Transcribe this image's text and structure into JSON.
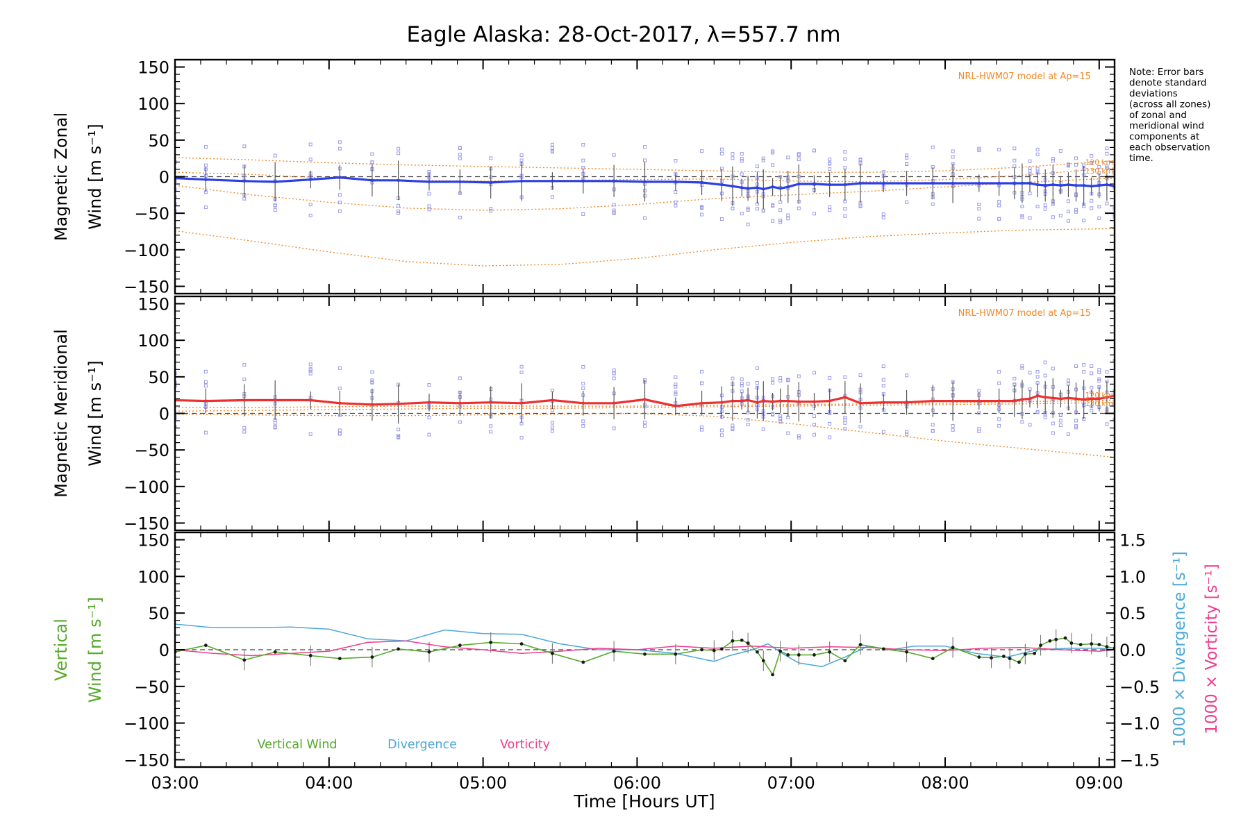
{
  "chart_data": {
    "title": "Eagle Alaska: 28-Oct-2017, λ=557.7 nm",
    "xlabel": "Time [Hours UT]",
    "x_ticks": [
      "03:00",
      "04:00",
      "05:00",
      "06:00",
      "07:00",
      "08:00",
      "09:00"
    ],
    "xlim": [
      3.0,
      9.1
    ],
    "note": [
      "Note: Error bars",
      "denote standard",
      "deviations",
      "(across all zones)",
      "of zonal and",
      "meridional wind",
      "components at",
      "each observation",
      "time."
    ],
    "colors": {
      "zonal": "#2c3fe6",
      "meridional": "#ee2f2f",
      "vertical": "#55aa2a",
      "divergence": "#4aa8d8",
      "vorticity": "#ee3c8c",
      "model": "#f08a2a",
      "zone_marker": "#9a9ae8"
    },
    "panels": [
      {
        "type": "line",
        "ylabel_line1": "Magnetic Zonal",
        "ylabel_line2": "Wind [m s⁻¹]",
        "ylim": [
          -160,
          160
        ],
        "yticks": [
          150,
          100,
          50,
          0,
          -50,
          -100,
          -150
        ],
        "model_label": "NRL-HWM07 model at Ap=15",
        "model_level_labels": [
          "120 km",
          "130 km"
        ],
        "series": [
          {
            "x": [
              3.0,
              3.2,
              3.45,
              3.65,
              3.88,
              4.07,
              4.28,
              4.45,
              4.65,
              4.85,
              5.05,
              5.25,
              5.45,
              5.65,
              5.85,
              6.05,
              6.25,
              6.42,
              6.55,
              6.62,
              6.68,
              6.72,
              6.78,
              6.82,
              6.88,
              6.93,
              6.98,
              7.05,
              7.15,
              7.25,
              7.35,
              7.45,
              7.6,
              7.75,
              7.92,
              8.05,
              8.22,
              8.35,
              8.45,
              8.5,
              8.55,
              8.6,
              8.65,
              8.7,
              8.75,
              8.8,
              8.85,
              8.9,
              8.95,
              9.0,
              9.05,
              9.1
            ],
            "values": [
              -2,
              -4,
              -6,
              -7,
              -4,
              -1,
              -5,
              -5,
              -7,
              -7,
              -8,
              -6,
              -6,
              -6,
              -6,
              -7,
              -7,
              -8,
              -11,
              -13,
              -15,
              -16,
              -15,
              -17,
              -14,
              -16,
              -14,
              -10,
              -10,
              -11,
              -11,
              -9,
              -9,
              -9,
              -9,
              -9,
              -9,
              -9,
              -9,
              -9,
              -9,
              -11,
              -12,
              -11,
              -12,
              -11,
              -12,
              -12,
              -13,
              -12,
              -11,
              -13
            ]
          }
        ],
        "model_curves": [
          {
            "x": [
              3.0,
              3.5,
              4.0,
              4.5,
              5.0,
              5.5,
              6.0,
              6.5,
              7.0,
              7.5,
              8.0,
              8.5,
              9.1
            ],
            "values": [
              26,
              23,
              19,
              16,
              14,
              12,
              10,
              8,
              6,
              6,
              8,
              13,
              22
            ]
          },
          {
            "x": [
              3.0,
              3.5,
              4.0,
              4.5,
              5.0,
              5.5,
              6.0,
              6.5,
              7.0,
              7.5,
              8.0,
              8.5,
              9.1
            ],
            "values": [
              6,
              3,
              -2,
              -5,
              -6,
              -5,
              -4,
              -3,
              -6,
              -7,
              -4,
              2,
              12
            ]
          },
          {
            "x": [
              3.0,
              3.5,
              4.0,
              4.5,
              5.0,
              5.5,
              6.0,
              6.5,
              7.0,
              7.5,
              8.0,
              8.5,
              9.1
            ],
            "values": [
              -12,
              -25,
              -35,
              -43,
              -46,
              -44,
              -38,
              -30,
              -25,
              -20,
              -14,
              -8,
              -2
            ]
          },
          {
            "x": [
              3.0,
              3.5,
              4.0,
              4.5,
              5.0,
              5.5,
              6.0,
              6.5,
              7.0,
              7.5,
              8.0,
              8.5,
              9.1
            ],
            "values": [
              -74,
              -88,
              -103,
              -116,
              -122,
              -120,
              -112,
              -100,
              -90,
              -82,
              -77,
              -73,
              -71
            ]
          }
        ]
      },
      {
        "type": "line",
        "ylabel_line1": "Magnetic Meridional",
        "ylabel_line2": "Wind [m s⁻¹]",
        "ylim": [
          -160,
          160
        ],
        "yticks": [
          150,
          100,
          50,
          0,
          -50,
          -100,
          -150
        ],
        "model_label": "NRL-HWM07 model at Ap=15",
        "model_level_labels": [
          "120 km",
          "130 km"
        ],
        "series": [
          {
            "x": [
              3.0,
              3.2,
              3.45,
              3.65,
              3.88,
              4.07,
              4.28,
              4.45,
              4.65,
              4.85,
              5.05,
              5.25,
              5.45,
              5.65,
              5.85,
              6.05,
              6.25,
              6.42,
              6.55,
              6.62,
              6.68,
              6.72,
              6.78,
              6.82,
              6.88,
              6.93,
              6.98,
              7.05,
              7.15,
              7.25,
              7.35,
              7.45,
              7.6,
              7.75,
              7.92,
              8.05,
              8.22,
              8.35,
              8.45,
              8.5,
              8.55,
              8.6,
              8.65,
              8.7,
              8.75,
              8.8,
              8.85,
              8.9,
              8.95,
              9.0,
              9.05,
              9.1
            ],
            "values": [
              18,
              17,
              18,
              18,
              18,
              14,
              12,
              13,
              15,
              14,
              15,
              14,
              18,
              14,
              14,
              19,
              10,
              14,
              15,
              17,
              17,
              18,
              15,
              17,
              16,
              17,
              17,
              16,
              16,
              17,
              22,
              14,
              15,
              15,
              17,
              17,
              17,
              17,
              17,
              19,
              20,
              24,
              22,
              21,
              20,
              21,
              20,
              19,
              20,
              20,
              22,
              24
            ]
          }
        ],
        "model_curves": [
          {
            "x": [
              3.0,
              3.5,
              4.0,
              4.5,
              5.0,
              5.5,
              6.0,
              6.5,
              7.0,
              7.5,
              8.0,
              8.5,
              9.1
            ],
            "values": [
              8,
              8,
              9,
              10,
              10,
              10,
              10,
              11,
              12,
              13,
              14,
              16,
              18
            ]
          },
          {
            "x": [
              3.0,
              3.5,
              4.0,
              4.5,
              5.0,
              5.5,
              6.0,
              6.5,
              7.0,
              7.5,
              8.0,
              8.5,
              9.1
            ],
            "values": [
              3,
              4,
              5,
              6,
              7,
              7,
              8,
              9,
              10,
              11,
              12,
              13,
              15
            ]
          },
          {
            "x": [
              3.0,
              3.5,
              4.0,
              4.5,
              5.0,
              5.5,
              6.0,
              6.5,
              7.0,
              7.5,
              8.0,
              8.5,
              9.1
            ],
            "values": [
              -1,
              -2,
              -3,
              -3,
              -2,
              -1,
              0,
              -4,
              -14,
              -26,
              -38,
              -48,
              -60
            ]
          }
        ]
      },
      {
        "type": "line",
        "ylabel_line1": "Vertical",
        "ylabel_line2": "Wind [m s⁻¹]",
        "ylim": [
          -160,
          160
        ],
        "yticks": [
          150,
          100,
          50,
          0,
          -50,
          -100,
          -150
        ],
        "right_axis_label_1": "1000 × Divergence [s⁻¹]",
        "right_axis_label_2": "1000 × Vorticity [s⁻¹]",
        "right_ylim": [
          -1.6,
          1.6
        ],
        "right_yticks": [
          "1.5",
          "1.0",
          "0.5",
          "0.0",
          "−0.5",
          "−1.0",
          "−1.5"
        ],
        "legend": [
          "Vertical Wind",
          "Divergence",
          "Vorticity"
        ],
        "series": [
          {
            "name": "Vertical Wind",
            "x": [
              3.0,
              3.2,
              3.45,
              3.65,
              3.88,
              4.07,
              4.28,
              4.45,
              4.65,
              4.85,
              5.05,
              5.25,
              5.45,
              5.65,
              5.85,
              6.05,
              6.25,
              6.42,
              6.5,
              6.55,
              6.62,
              6.68,
              6.72,
              6.78,
              6.82,
              6.88,
              6.93,
              6.98,
              7.05,
              7.15,
              7.25,
              7.35,
              7.45,
              7.6,
              7.75,
              7.92,
              8.05,
              8.22,
              8.3,
              8.38,
              8.42,
              8.48,
              8.52,
              8.58,
              8.62,
              8.68,
              8.72,
              8.78,
              8.82,
              8.88,
              8.95,
              9.0,
              9.05,
              9.1
            ],
            "values": [
              -3,
              6,
              -14,
              -3,
              -8,
              -12,
              -10,
              1,
              -3,
              6,
              10,
              8,
              -5,
              -17,
              -2,
              -6,
              -6,
              0,
              -1,
              1,
              12,
              13,
              9,
              -3,
              -15,
              -34,
              -2,
              -7,
              -7,
              -7,
              -3,
              -15,
              7,
              1,
              -3,
              -12,
              3,
              -10,
              -11,
              -9,
              -12,
              -17,
              -6,
              -5,
              6,
              12,
              14,
              16,
              9,
              7,
              8,
              7,
              4,
              2
            ]
          },
          {
            "name": "Divergence",
            "x": [
              3.0,
              3.25,
              3.5,
              3.75,
              4.0,
              4.25,
              4.5,
              4.75,
              5.0,
              5.25,
              5.5,
              5.75,
              6.0,
              6.25,
              6.5,
              6.6,
              6.75,
              6.85,
              6.95,
              7.05,
              7.2,
              7.35,
              7.5,
              7.65,
              7.8,
              8.0,
              8.2,
              8.4,
              8.6,
              8.8,
              9.0,
              9.1
            ],
            "values": [
              0.35,
              0.3,
              0.3,
              0.31,
              0.28,
              0.15,
              0.12,
              0.27,
              0.22,
              0.21,
              0.08,
              0.0,
              0.0,
              -0.05,
              -0.16,
              -0.08,
              0.0,
              0.08,
              -0.06,
              -0.18,
              -0.23,
              -0.1,
              0.05,
              0.0,
              0.05,
              0.05,
              -0.05,
              -0.1,
              0.0,
              0.02,
              0.02,
              0.0
            ]
          },
          {
            "name": "Vorticity",
            "x": [
              3.0,
              3.25,
              3.5,
              3.75,
              4.0,
              4.25,
              4.5,
              4.75,
              5.0,
              5.25,
              5.5,
              5.75,
              6.0,
              6.25,
              6.5,
              6.75,
              7.0,
              7.25,
              7.5,
              7.75,
              8.0,
              8.25,
              8.5,
              8.75,
              9.0,
              9.1
            ],
            "values": [
              0.0,
              -0.05,
              -0.08,
              -0.05,
              -0.02,
              0.1,
              0.12,
              0.04,
              0.0,
              -0.05,
              -0.02,
              0.02,
              0.0,
              0.05,
              0.02,
              0.05,
              0.02,
              0.04,
              0.03,
              0.0,
              -0.01,
              0.02,
              0.03,
              0.0,
              -0.02,
              0.0
            ]
          }
        ]
      }
    ]
  }
}
